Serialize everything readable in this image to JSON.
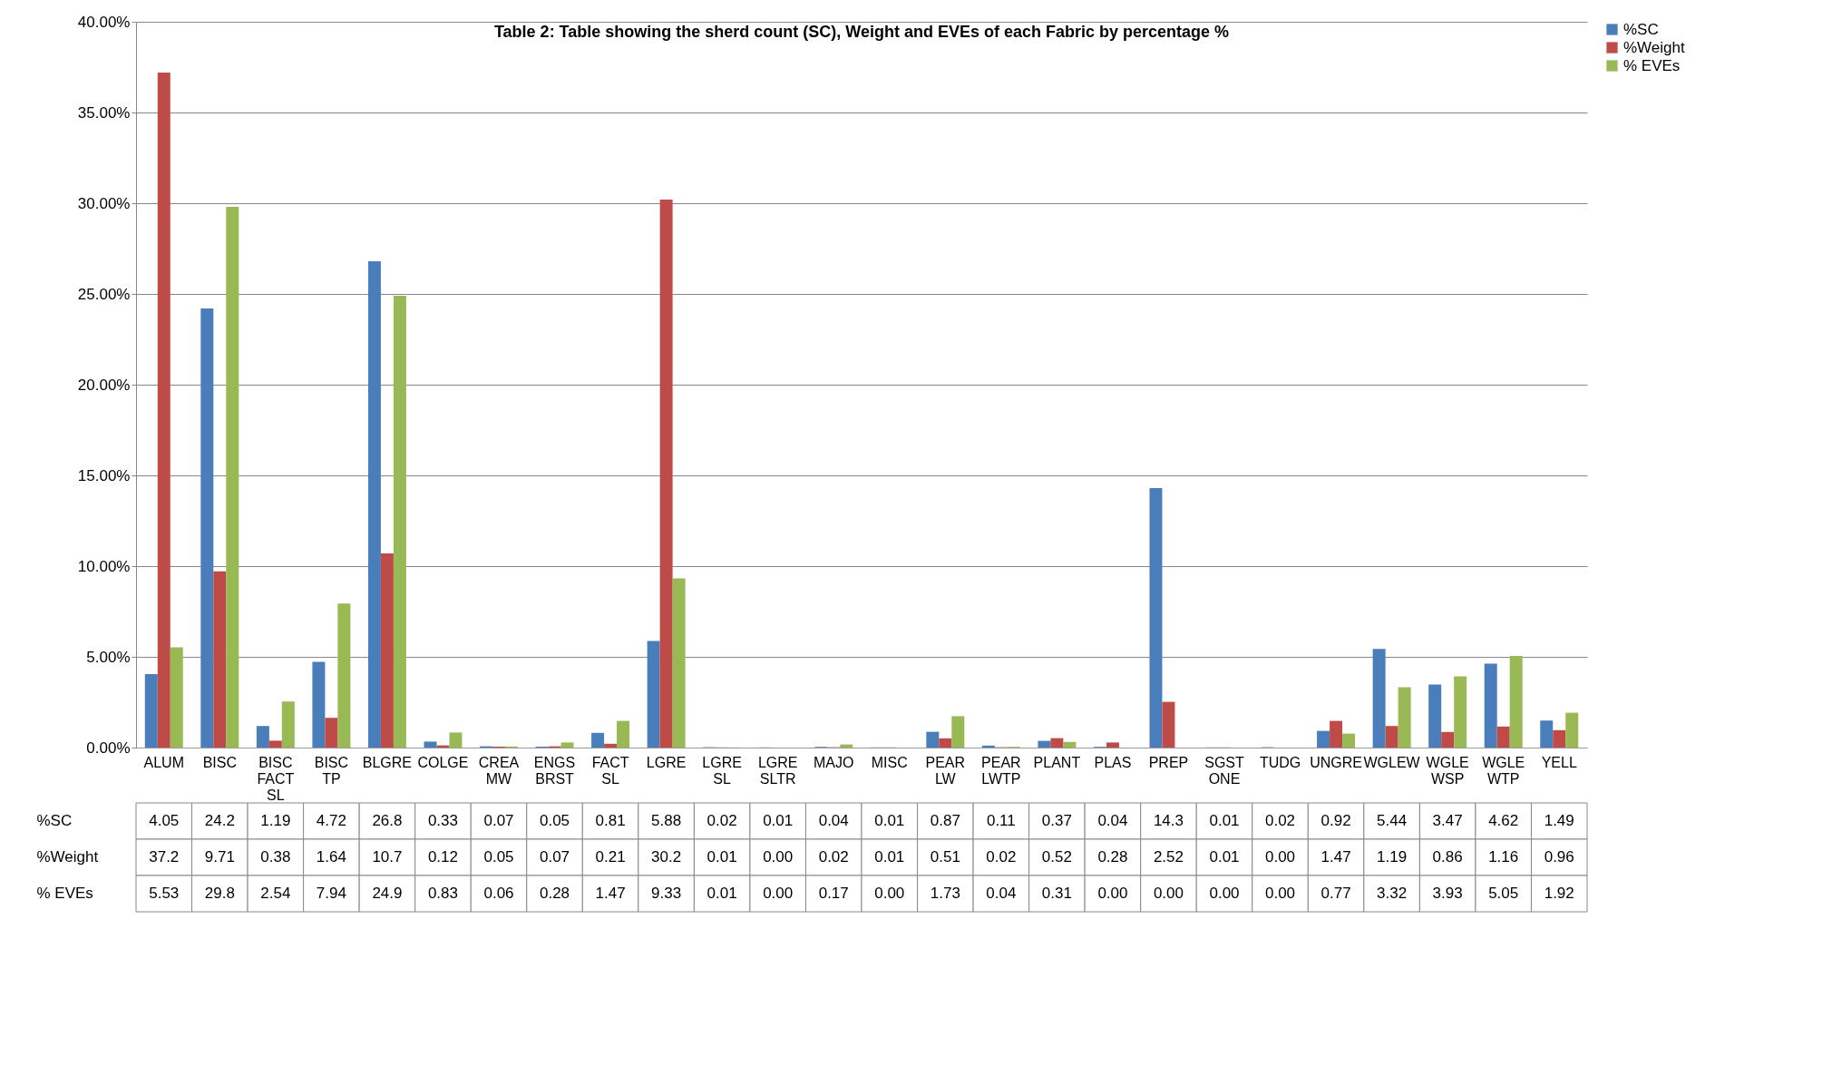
{
  "chart_data": {
    "type": "bar",
    "title": "Table 2: Table showing the sherd count (SC), Weight and EVEs of each Fabric by percentage %",
    "categories": [
      "ALUM",
      "BISC",
      "BISC FACT SL",
      "BISC TP",
      "BLGRE",
      "COLGE",
      "CREAMW",
      "ENGS BRST",
      "FACT SL",
      "LGRE",
      "LGRE SL",
      "LGRE SLTR",
      "MAJO",
      "MISC",
      "PEARLW",
      "PEARLWTP",
      "PLANT",
      "PLAS",
      "PREP",
      "SGSTONE",
      "TUDG",
      "UNGRE",
      "WGLEW",
      "WGLEWSP",
      "WGLEWTP",
      "YELL"
    ],
    "series": [
      {
        "name": "%SC",
        "color": "#4a7ebb",
        "values": [
          4.05,
          24.2,
          1.19,
          4.72,
          26.8,
          0.33,
          0.07,
          0.05,
          0.81,
          5.88,
          0.02,
          0.01,
          0.04,
          0.01,
          0.87,
          0.11,
          0.37,
          0.04,
          14.3,
          0.01,
          0.02,
          0.92,
          5.44,
          3.47,
          4.62,
          1.49
        ],
        "value_labels": [
          "4.05",
          "24.2",
          "1.19",
          "4.72",
          "26.8",
          "0.33",
          "0.07",
          "0.05",
          "0.81",
          "5.88",
          "0.02",
          "0.01",
          "0.04",
          "0.01",
          "0.87",
          "0.11",
          "0.37",
          "0.04",
          "14.3",
          "0.01",
          "0.02",
          "0.92",
          "5.44",
          "3.47",
          "4.62",
          "1.49"
        ]
      },
      {
        "name": "%Weight",
        "color": "#be4b48",
        "values": [
          37.2,
          9.71,
          0.38,
          1.64,
          10.7,
          0.12,
          0.05,
          0.07,
          0.21,
          30.2,
          0.01,
          0.0,
          0.02,
          0.01,
          0.51,
          0.02,
          0.52,
          0.28,
          2.52,
          0.01,
          0.0,
          1.47,
          1.19,
          0.86,
          1.16,
          0.96
        ],
        "value_labels": [
          "37.2",
          "9.71",
          "0.38",
          "1.64",
          "10.7",
          "0.12",
          "0.05",
          "0.07",
          "0.21",
          "30.2",
          "0.01",
          "0.00",
          "0.02",
          "0.01",
          "0.51",
          "0.02",
          "0.52",
          "0.28",
          "2.52",
          "0.01",
          "0.00",
          "1.47",
          "1.19",
          "0.86",
          "1.16",
          "0.96"
        ]
      },
      {
        "name": "% EVEs",
        "color": "#98b954",
        "values": [
          5.53,
          29.8,
          2.54,
          7.94,
          24.9,
          0.83,
          0.06,
          0.28,
          1.47,
          9.33,
          0.01,
          0.0,
          0.17,
          0.0,
          1.73,
          0.04,
          0.31,
          0.0,
          0.0,
          0.0,
          0.0,
          0.77,
          3.32,
          3.93,
          5.05,
          1.92
        ],
        "value_labels": [
          "5.53",
          "29.8",
          "2.54",
          "7.94",
          "24.9",
          "0.83",
          "0.06",
          "0.28",
          "1.47",
          "9.33",
          "0.01",
          "0.00",
          "0.17",
          "0.00",
          "1.73",
          "0.04",
          "0.31",
          "0.00",
          "0.00",
          "0.00",
          "0.00",
          "0.77",
          "3.32",
          "3.93",
          "5.05",
          "1.92"
        ]
      }
    ],
    "ylim": [
      0,
      40
    ],
    "yticks": [
      {
        "value": 0,
        "label": "0.00%"
      },
      {
        "value": 5,
        "label": "5.00%"
      },
      {
        "value": 10,
        "label": "10.00%"
      },
      {
        "value": 15,
        "label": "15.00%"
      },
      {
        "value": 20,
        "label": "20.00%"
      },
      {
        "value": 25,
        "label": "25.00%"
      },
      {
        "value": 30,
        "label": "30.00%"
      },
      {
        "value": 35,
        "label": "35.00%"
      },
      {
        "value": 40,
        "label": "40.00%"
      }
    ],
    "grid": "y",
    "legend": "right"
  }
}
